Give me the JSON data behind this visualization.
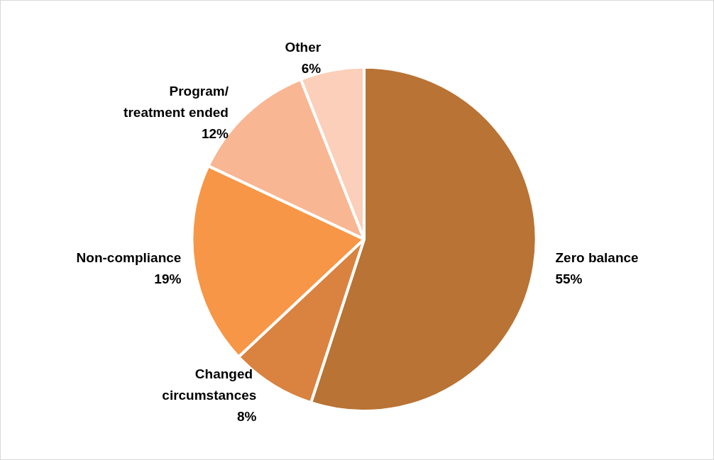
{
  "chart_data": {
    "type": "pie",
    "categories": [
      "Zero balance",
      "Changed circumstances",
      "Non-compliance",
      "Program/treatment ended",
      "Other"
    ],
    "values": [
      55,
      8,
      19,
      12,
      6
    ],
    "colors": [
      "#b97334",
      "#da823f",
      "#f79646",
      "#f9b692",
      "#fbcfb9"
    ],
    "value_labels": [
      "55%",
      "8%",
      "19%",
      "12%",
      "6%"
    ]
  }
}
